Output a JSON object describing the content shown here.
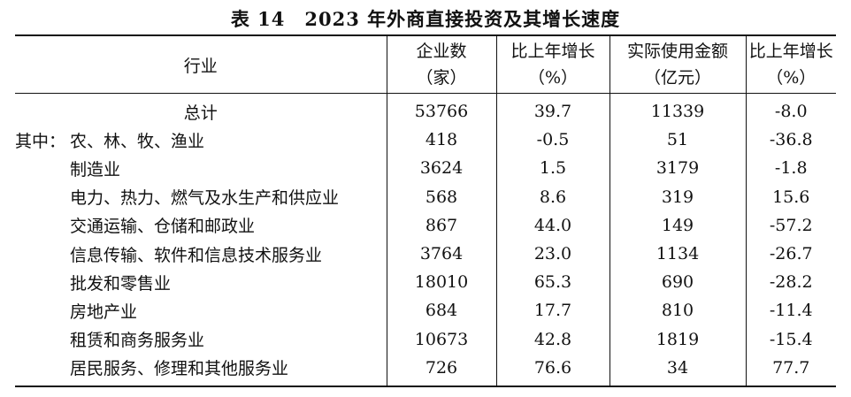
{
  "title": "表 14　2023 年外商直接投资及其增长速度",
  "headers": {
    "industry": "行业",
    "enterprises": [
      "企业数",
      "（家）"
    ],
    "ent_growth": [
      "比上年增长",
      "（%）"
    ],
    "amount": [
      "实际使用金额",
      "（亿元）"
    ],
    "amt_growth": [
      "比上年增长",
      "（%）"
    ]
  },
  "among_label": "其中：",
  "rows": [
    {
      "industry": "总计",
      "enterprises": "53766",
      "ent_growth": "39.7",
      "amount": "11339",
      "amt_growth": "-8.0"
    },
    {
      "industry": "农、林、牧、渔业",
      "enterprises": "418",
      "ent_growth": "-0.5",
      "amount": "51",
      "amt_growth": "-36.8"
    },
    {
      "industry": "制造业",
      "enterprises": "3624",
      "ent_growth": "1.5",
      "amount": "3179",
      "amt_growth": "-1.8"
    },
    {
      "industry": "电力、热力、燃气及水生产和供应业",
      "enterprises": "568",
      "ent_growth": "8.6",
      "amount": "319",
      "amt_growth": "15.6"
    },
    {
      "industry": "交通运输、仓储和邮政业",
      "enterprises": "867",
      "ent_growth": "44.0",
      "amount": "149",
      "amt_growth": "-57.2"
    },
    {
      "industry": "信息传输、软件和信息技术服务业",
      "enterprises": "3764",
      "ent_growth": "23.0",
      "amount": "1134",
      "amt_growth": "-26.7"
    },
    {
      "industry": "批发和零售业",
      "enterprises": "18010",
      "ent_growth": "65.3",
      "amount": "690",
      "amt_growth": "-28.2"
    },
    {
      "industry": "房地产业",
      "enterprises": "684",
      "ent_growth": "17.7",
      "amount": "810",
      "amt_growth": "-11.4"
    },
    {
      "industry": "租赁和商务服务业",
      "enterprises": "10673",
      "ent_growth": "42.8",
      "amount": "1819",
      "amt_growth": "-15.4"
    },
    {
      "industry": "居民服务、修理和其他服务业",
      "enterprises": "726",
      "ent_growth": "76.6",
      "amount": "34",
      "amt_growth": "77.7"
    }
  ]
}
